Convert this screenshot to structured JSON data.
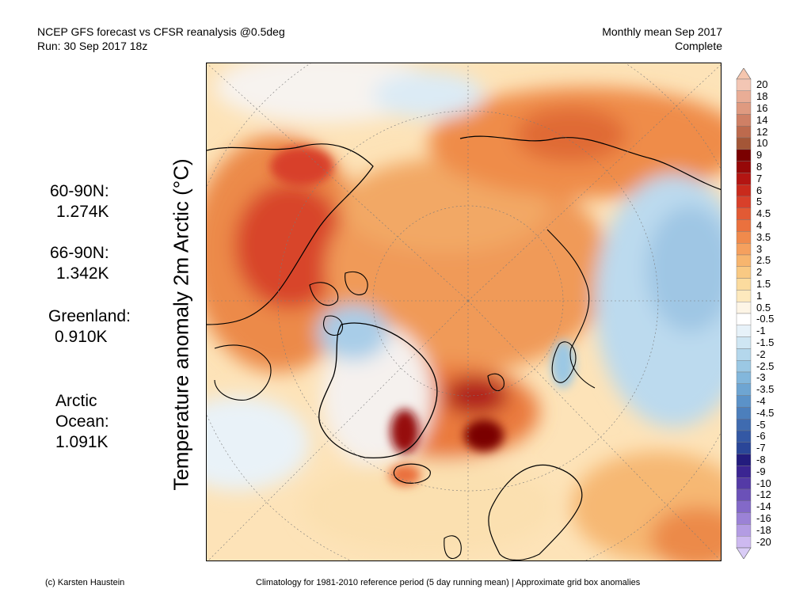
{
  "header": {
    "line1": "NCEP GFS forecast vs CFSR reanalysis @0.5deg",
    "line2": "Run: 30 Sep 2017 18z",
    "right1": "Monthly mean Sep 2017",
    "right2": "Complete"
  },
  "ylabel": "Temperature anomaly 2m Arctic (°C)",
  "stats": [
    {
      "label": "60-90N:",
      "value": "1.274K"
    },
    {
      "label": "66-90N:",
      "value": "1.342K"
    },
    {
      "label": "Greenland:",
      "value": "0.910K"
    },
    {
      "label": "Arctic\nOcean:",
      "value": "1.091K"
    }
  ],
  "colorbar": {
    "labels": [
      "20",
      "18",
      "16",
      "14",
      "12",
      "10",
      "9",
      "8",
      "7",
      "6",
      "5",
      "4.5",
      "4",
      "3.5",
      "3",
      "2.5",
      "2",
      "1.5",
      "1",
      "0.5",
      "-0.5",
      "-1",
      "-1.5",
      "-2",
      "-2.5",
      "-3",
      "-3.5",
      "-4",
      "-4.5",
      "-5",
      "-6",
      "-7",
      "-8",
      "-9",
      "-10",
      "-12",
      "-14",
      "-16",
      "-18",
      "-20"
    ],
    "colors": [
      "#f3c6b4",
      "#e9ad96",
      "#df9a80",
      "#cf8065",
      "#bd6a4d",
      "#a45637",
      "#7a0000",
      "#960808",
      "#b31512",
      "#c92a1c",
      "#d8402a",
      "#e25a34",
      "#ea713e",
      "#f08a4c",
      "#f5a05e",
      "#f7b56e",
      "#f9c983",
      "#fbdb9e",
      "#fde9bd",
      "#fdf5e6",
      "#ffffff",
      "#e7f2f9",
      "#cfe6f3",
      "#b4d7ec",
      "#9bc8e4",
      "#83b7dc",
      "#6ea5d2",
      "#5b92c8",
      "#4c7fbc",
      "#3f6bb0",
      "#3458a4",
      "#2a4698",
      "#231c7e",
      "#3b2592",
      "#543aa6",
      "#6b51b8",
      "#8369c8",
      "#9b82d6",
      "#b39ce3",
      "#cdb9f0"
    ],
    "top_color": "#f5c6ae",
    "bottom_color": "#d9ccf6"
  },
  "footer": {
    "left": "(c) Karsten Haustein",
    "right": "Climatology for 1981-2010 reference period (5 day running mean) | Approximate grid box anomalies"
  }
}
